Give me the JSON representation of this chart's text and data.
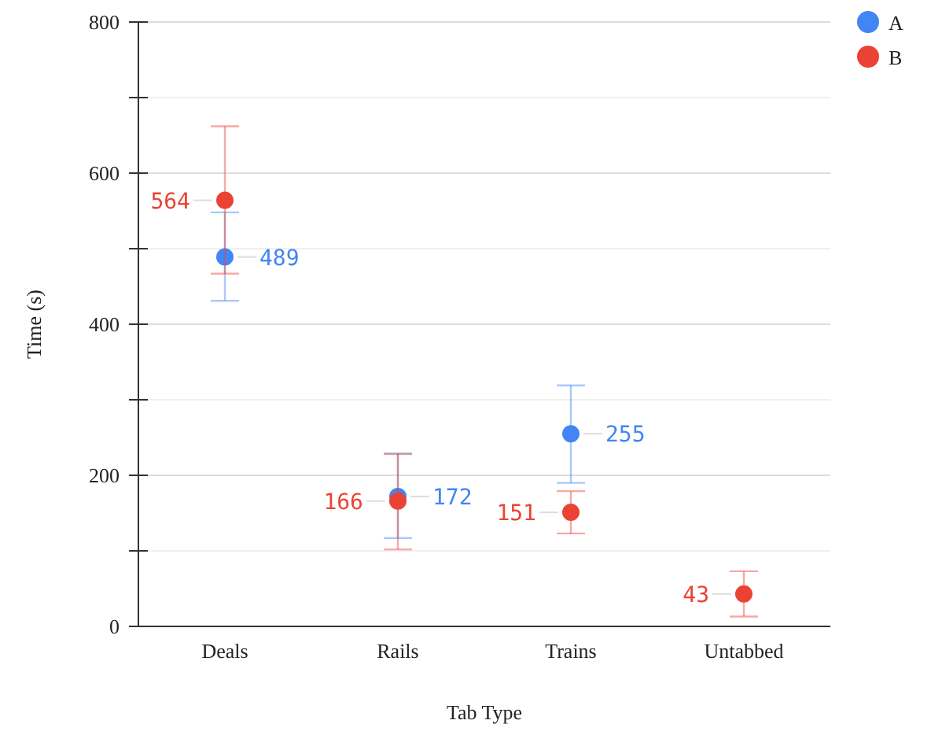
{
  "chart_data": {
    "type": "scatter",
    "xlabel": "Tab Type",
    "ylabel": "Time (s)",
    "categories": [
      "Deals",
      "Rails",
      "Trains",
      "Untabbed"
    ],
    "ylim": [
      0,
      800
    ],
    "yticks": [
      0,
      {
        "value": 100,
        "label": null
      },
      200,
      {
        "value": 300,
        "label": null
      },
      400,
      {
        "value": 500,
        "label": null
      },
      600,
      {
        "value": 700,
        "label": null
      },
      800
    ],
    "grid": true,
    "legend": "top right",
    "marker": "circle",
    "data_labels": true,
    "series": [
      {
        "name": "A",
        "color": "#4285f4",
        "values": [
          489,
          172,
          255,
          null
        ],
        "errors": [
          [
            431,
            548
          ],
          [
            117,
            229
          ],
          [
            190,
            319
          ],
          null
        ]
      },
      {
        "name": "B",
        "color": "#ea4335",
        "values": [
          564,
          166,
          151,
          43
        ],
        "errors": [
          [
            467,
            662
          ],
          [
            102,
            228
          ],
          [
            123,
            179
          ],
          [
            13,
            73
          ]
        ]
      }
    ]
  }
}
